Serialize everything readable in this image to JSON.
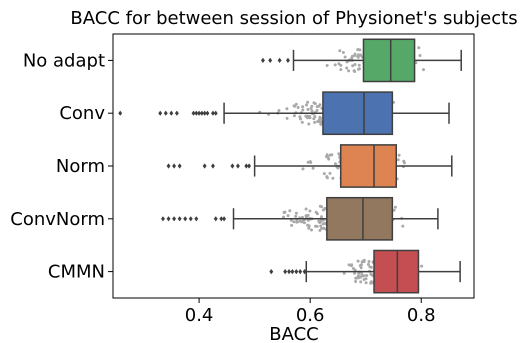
{
  "chart_data": {
    "type": "box",
    "title": "BACC for between session of Physionet's subjects",
    "xlabel": "BACC",
    "ylabel": "",
    "xlim": [
      0.245,
      0.895
    ],
    "xticks": [
      0.4,
      0.6,
      0.8
    ],
    "xtick_labels": [
      "0.4",
      "0.6",
      "0.8"
    ],
    "grid": false,
    "overlay": "swarm",
    "swarm_color": "#a9a9a9",
    "categories": [
      "No adapt",
      "Conv",
      "Norm",
      "ConvNorm",
      "CMMN"
    ],
    "boxes": [
      {
        "label": "No adapt",
        "color": "#55a868",
        "whisker_low": 0.57,
        "q1": 0.696,
        "median": 0.745,
        "q3": 0.788,
        "whisker_high": 0.872,
        "outliers": [
          0.515,
          0.528,
          0.545,
          0.56
        ]
      },
      {
        "label": "Conv",
        "color": "#4c72b0",
        "whisker_low": 0.445,
        "q1": 0.623,
        "median": 0.697,
        "q3": 0.748,
        "whisker_high": 0.85,
        "outliers": [
          0.258,
          0.33,
          0.34,
          0.35,
          0.36,
          0.39,
          0.395,
          0.4,
          0.405,
          0.41,
          0.415,
          0.425,
          0.43
        ]
      },
      {
        "label": "Norm",
        "color": "#dd8452",
        "whisker_low": 0.5,
        "q1": 0.655,
        "median": 0.715,
        "q3": 0.755,
        "whisker_high": 0.855,
        "outliers": [
          0.345,
          0.355,
          0.365,
          0.41,
          0.425,
          0.46,
          0.47,
          0.485,
          0.49
        ]
      },
      {
        "label": "ConvNorm",
        "color": "#937860",
        "whisker_low": 0.462,
        "q1": 0.63,
        "median": 0.695,
        "q3": 0.748,
        "whisker_high": 0.83,
        "outliers": [
          0.335,
          0.345,
          0.355,
          0.365,
          0.375,
          0.385,
          0.395,
          0.43,
          0.44,
          0.445
        ]
      },
      {
        "label": "CMMN",
        "color": "#c44e52",
        "whisker_low": 0.593,
        "q1": 0.715,
        "median": 0.757,
        "q3": 0.795,
        "whisker_high": 0.87,
        "outliers": [
          0.53,
          0.555,
          0.562,
          0.568,
          0.575,
          0.582,
          0.59
        ]
      }
    ]
  }
}
